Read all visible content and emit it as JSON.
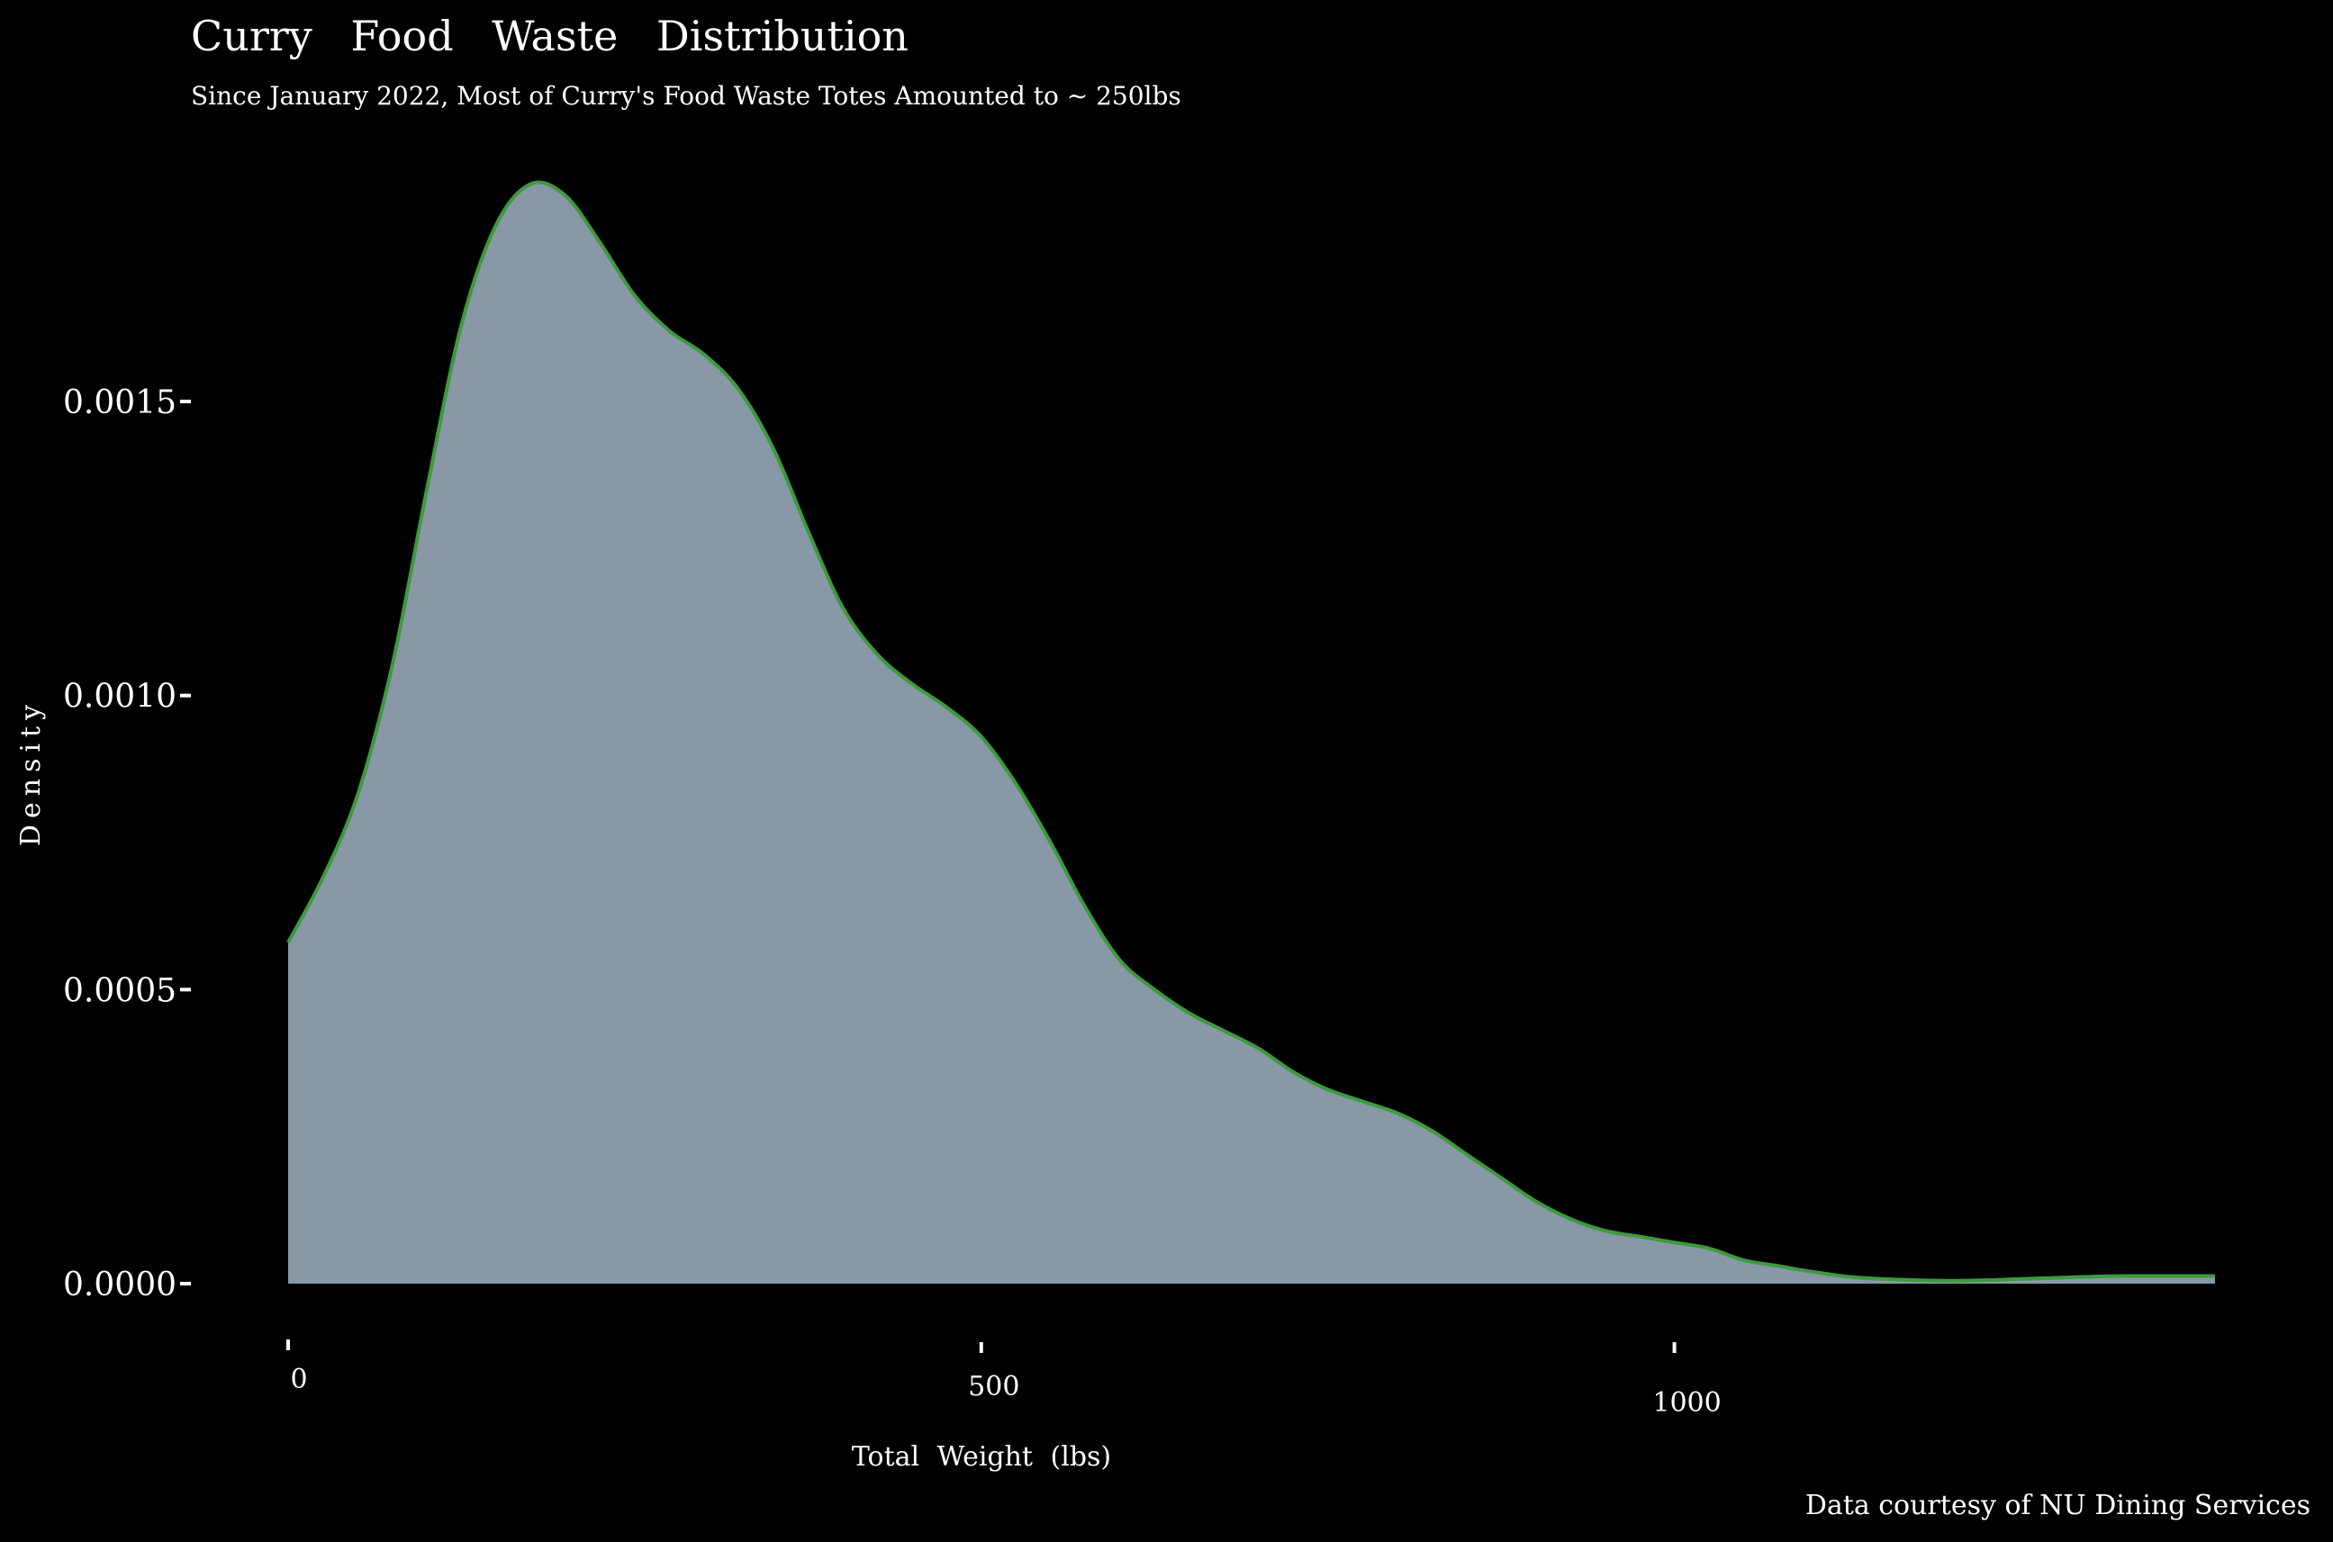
{
  "chart_data": {
    "type": "area",
    "title": "Curry Food Waste Distribution",
    "subtitle": "Since January 2022, Most of Curry's Food Waste Totes Amounted to ~ 250lbs",
    "xlabel": "Total Weight (lbs)",
    "ylabel": "Density",
    "caption": "Data courtesy of NU Dining Services",
    "xlim": [
      0,
      1390
    ],
    "ylim": [
      0,
      0.00185
    ],
    "x_ticks": [
      0,
      500,
      1000
    ],
    "x_tick_labels": [
      "0",
      "500",
      "1000"
    ],
    "y_ticks": [
      0,
      0.0005,
      0.001,
      0.0015
    ],
    "y_tick_labels": [
      "0.0000",
      "0.0005",
      "0.0010",
      "0.0015"
    ],
    "grid": false,
    "legend": "none",
    "fill_color": "#8898a7",
    "line_color": "#3d9a3d",
    "background": "#000000",
    "x": [
      0,
      25,
      50,
      75,
      100,
      125,
      150,
      175,
      200,
      225,
      250,
      275,
      300,
      325,
      350,
      375,
      400,
      425,
      450,
      475,
      500,
      525,
      550,
      575,
      600,
      625,
      650,
      675,
      700,
      725,
      750,
      775,
      800,
      825,
      850,
      875,
      900,
      925,
      950,
      975,
      1000,
      1025,
      1050,
      1075,
      1100,
      1125,
      1150,
      1175,
      1200,
      1225,
      1250,
      1275,
      1300,
      1325,
      1350,
      1375,
      1390
    ],
    "y": [
      0.00058,
      0.00069,
      0.00083,
      0.00105,
      0.00135,
      0.00163,
      0.0018,
      0.00187,
      0.00185,
      0.00177,
      0.00168,
      0.00162,
      0.00158,
      0.00152,
      0.00142,
      0.00128,
      0.00115,
      0.00107,
      0.00102,
      0.00098,
      0.00093,
      0.00085,
      0.00075,
      0.00064,
      0.00055,
      0.0005,
      0.00046,
      0.00043,
      0.0004,
      0.00036,
      0.00033,
      0.00031,
      0.00029,
      0.00026,
      0.00022,
      0.00018,
      0.00014,
      0.00011,
      9e-05,
      8e-05,
      7e-05,
      6e-05,
      4e-05,
      3e-05,
      2e-05,
      1.2e-05,
      8e-06,
      6e-06,
      5e-06,
      6e-06,
      8e-06,
      1e-05,
      1.2e-05,
      1.3e-05,
      1.3e-05,
      1.3e-05,
      1.3e-05
    ]
  }
}
